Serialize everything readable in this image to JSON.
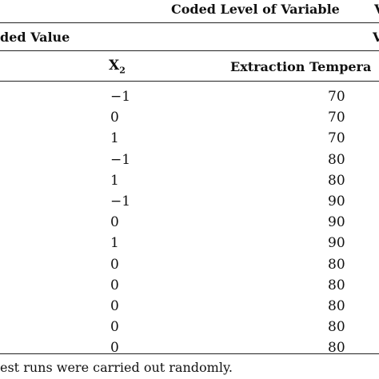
{
  "table": {
    "header_main": "Coded Level of Variable",
    "header_main_right": "V",
    "header_sub": "ded Value",
    "header_sub_right": "V",
    "col_x2_letter": "X",
    "col_x2_sub": "2",
    "col_temp": "Extraction Tempera",
    "rows": [
      {
        "x2": "−1",
        "temp": "70"
      },
      {
        "x2": "0",
        "temp": "70"
      },
      {
        "x2": "1",
        "temp": "70"
      },
      {
        "x2": "−1",
        "temp": "80"
      },
      {
        "x2": "1",
        "temp": "80"
      },
      {
        "x2": "−1",
        "temp": "90"
      },
      {
        "x2": "0",
        "temp": "90"
      },
      {
        "x2": "1",
        "temp": "90"
      },
      {
        "x2": "0",
        "temp": "80"
      },
      {
        "x2": "0",
        "temp": "80"
      },
      {
        "x2": "0",
        "temp": "80"
      },
      {
        "x2": "0",
        "temp": "80"
      },
      {
        "x2": "0",
        "temp": "80"
      }
    ]
  },
  "footnote": "est runs were carried out randomly."
}
